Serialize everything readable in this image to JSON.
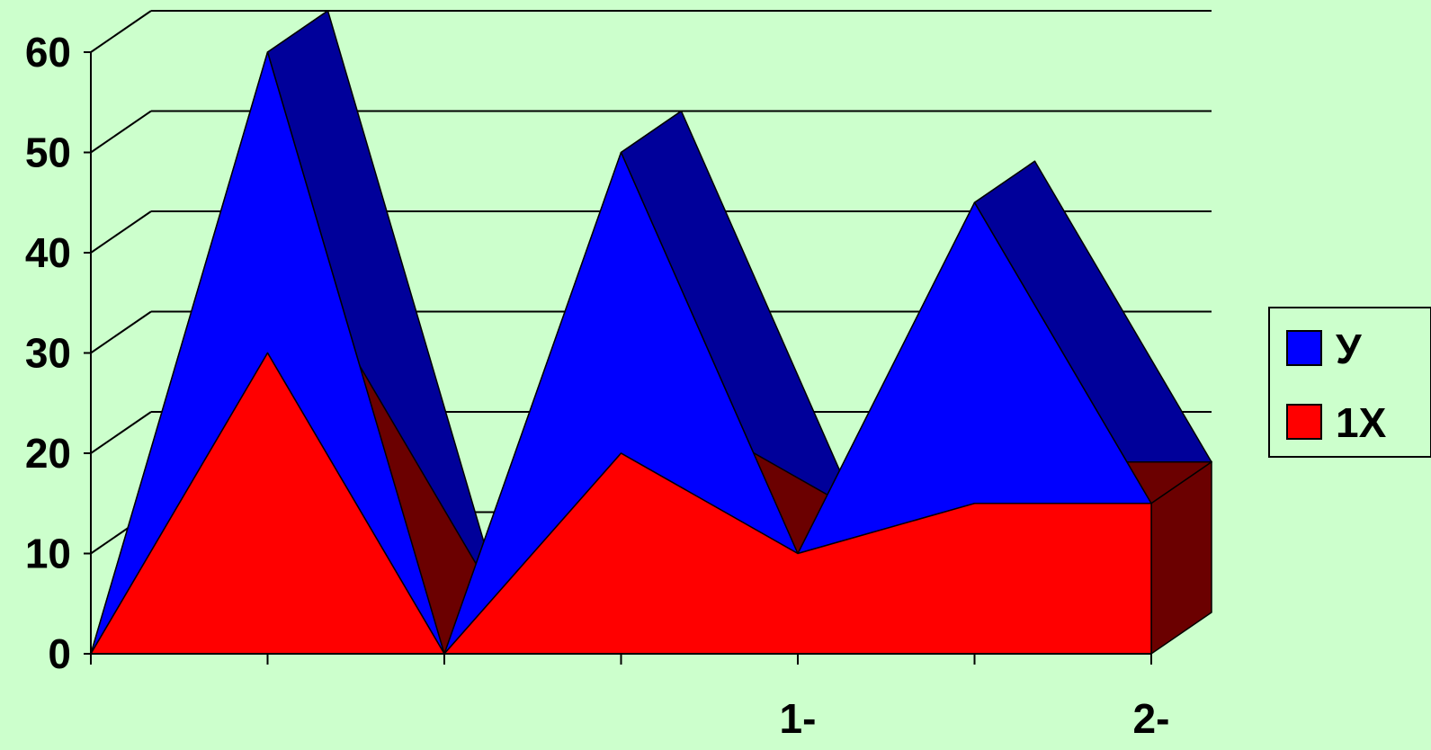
{
  "chart_data": {
    "type": "area",
    "style": "3d-stacked",
    "x_tick_labels": [
      "",
      "",
      "",
      "",
      "1-",
      "",
      "2-"
    ],
    "series": [
      {
        "name": "1X",
        "values": [
          0,
          30,
          0,
          20,
          10,
          15,
          15
        ],
        "color": "#ff0000",
        "side_color": "#6b0000"
      },
      {
        "name": "У",
        "values": [
          0,
          30,
          0,
          30,
          0,
          30,
          0
        ],
        "color": "#0000ff",
        "side_color": "#00009a"
      }
    ],
    "ylim": [
      0,
      60
    ],
    "yticks": [
      0,
      10,
      20,
      30,
      40,
      50,
      60
    ],
    "grid": true,
    "legend_position": "right",
    "legend": [
      {
        "label": "У",
        "color": "#0000ff"
      },
      {
        "label": "1X",
        "color": "#ff0000"
      }
    ],
    "background": "#ccffcc",
    "title": "",
    "xlabel": "",
    "ylabel": ""
  }
}
